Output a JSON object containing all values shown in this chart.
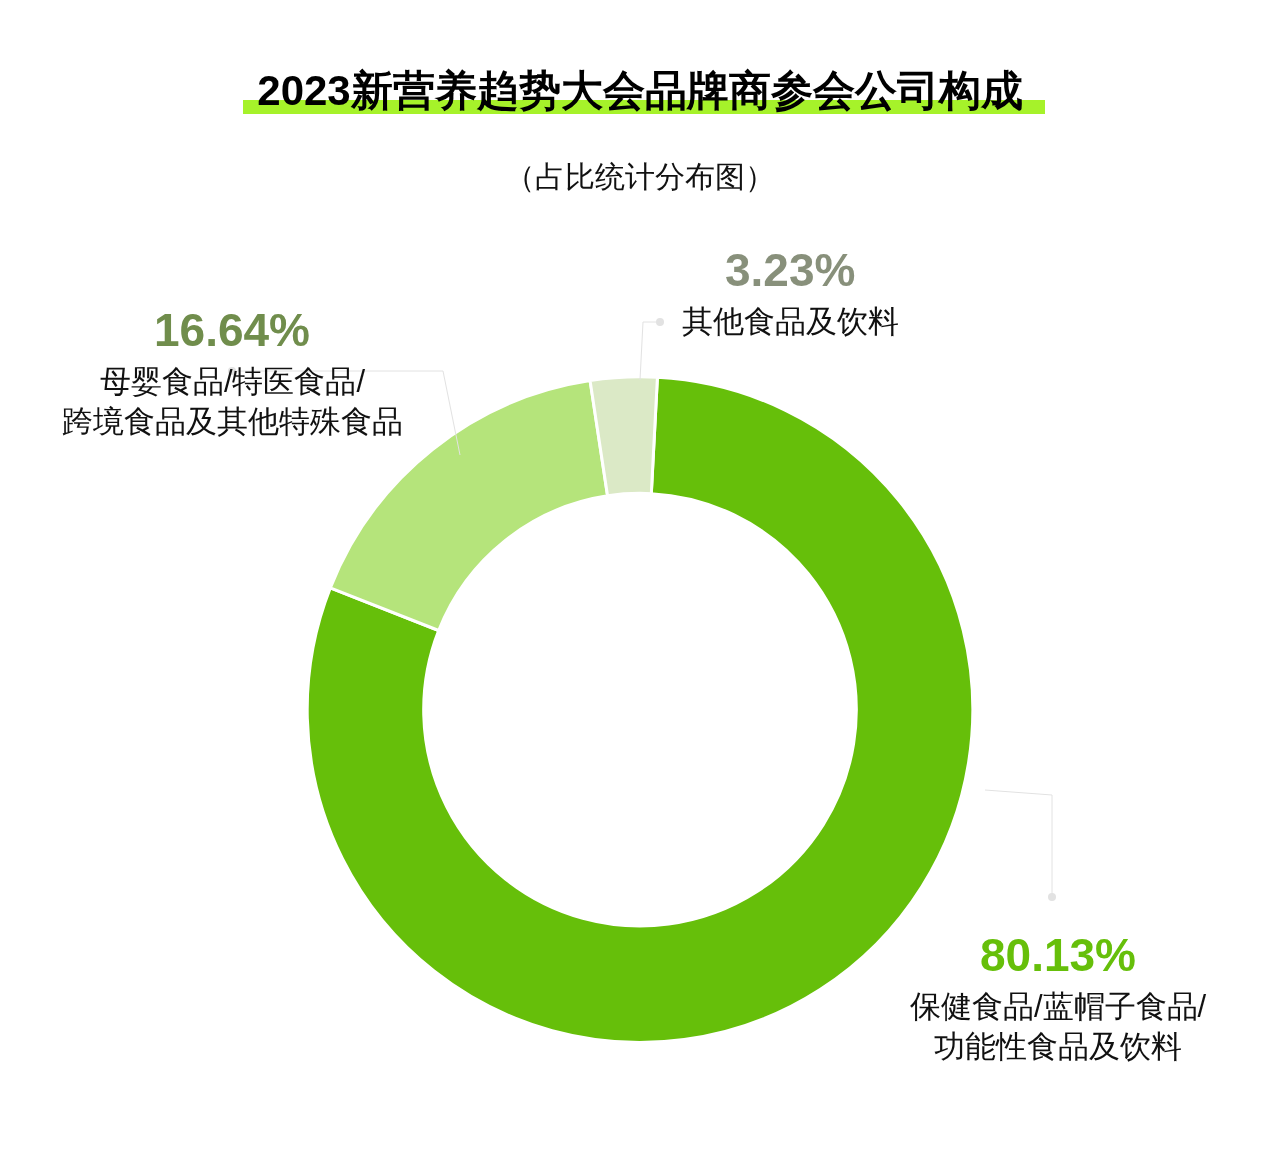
{
  "chart_data": {
    "type": "donut",
    "title": "2023新营养趋势大会品牌商参会公司构成",
    "subtitle": "（占比统计分布图）",
    "categories": [
      "保健食品/蓝帽子食品/功能性食品及饮料",
      "母婴食品/特医食品/跨境食品及其他特殊食品",
      "其他食品及饮料"
    ],
    "values": [
      80.13,
      16.64,
      3.23
    ],
    "value_labels": [
      "80.13%",
      "16.64%",
      "3.23%"
    ],
    "colors": [
      "#66bf0a",
      "#b5e47b",
      "#dbe9c6"
    ],
    "legend": false
  }
}
